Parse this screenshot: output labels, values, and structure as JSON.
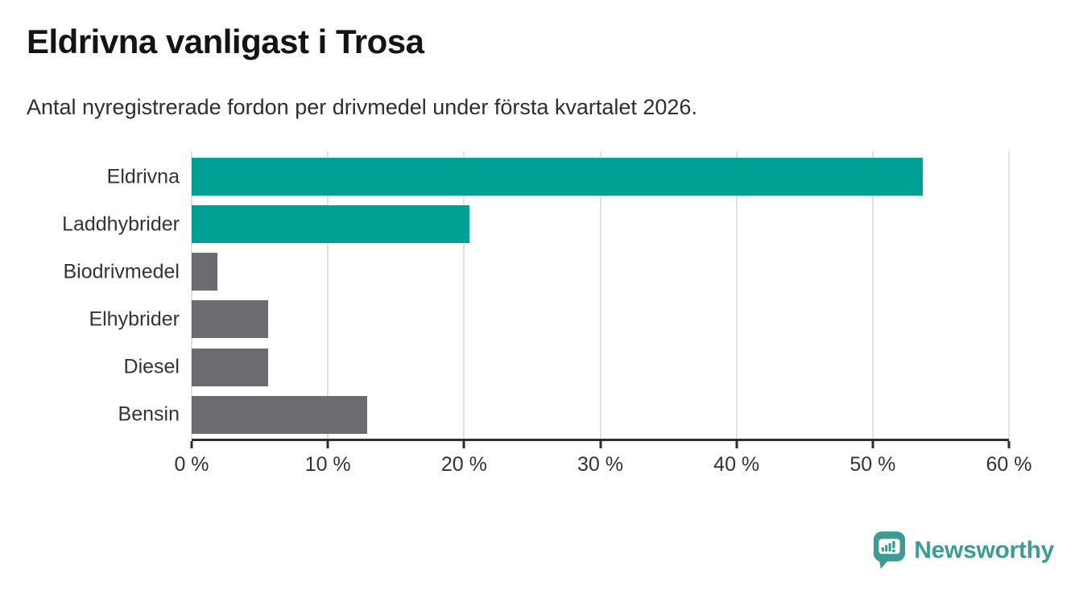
{
  "header": {
    "title": "Eldrivna vanligast i Trosa",
    "subtitle": "Antal nyregistrerade fordon per drivmedel under första kvartalet 2026."
  },
  "chart_data": {
    "type": "bar",
    "orientation": "horizontal",
    "title": "Eldrivna vanligast i Trosa",
    "subtitle": "Antal nyregistrerade fordon per drivmedel under första kvartalet 2026.",
    "categories": [
      "Eldrivna",
      "Laddhybrider",
      "Biodrivmedel",
      "Elhybrider",
      "Diesel",
      "Bensin"
    ],
    "values": [
      53.7,
      20.4,
      1.9,
      5.6,
      5.6,
      12.9
    ],
    "unit": "%",
    "xlim": [
      0,
      60
    ],
    "x_ticks": [
      0,
      10,
      20,
      30,
      40,
      50,
      60
    ],
    "x_tick_labels": [
      "0 %",
      "10 %",
      "20 %",
      "30 %",
      "40 %",
      "50 %",
      "60 %"
    ],
    "grid": true,
    "legend": false,
    "bar_colors": [
      "#00A094",
      "#00A094",
      "#6B6B70",
      "#6B6B70",
      "#6B6B70",
      "#6B6B70"
    ],
    "highlight_color": "#00A094",
    "default_color": "#6B6B70",
    "gridline_color": "#e0e0e0",
    "axis_color": "#2e2e2e"
  },
  "footer": {
    "brand": "Newsworthy",
    "brand_color": "#3E9B94"
  }
}
